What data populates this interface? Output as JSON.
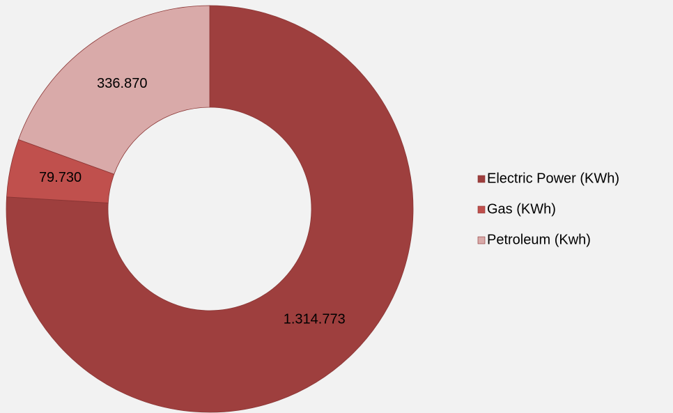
{
  "chart_data": {
    "type": "donut",
    "categories": [
      "Electric Power (KWh)",
      "Gas (KWh)",
      "Petroleum  (Kwh)"
    ],
    "values": [
      1314773,
      79730,
      336870
    ],
    "value_labels": [
      "1.314.773",
      "79.730",
      "336.870"
    ],
    "colors": [
      "#9e3f3e",
      "#c0504d",
      "#d9aaa9"
    ],
    "legend": "right"
  }
}
